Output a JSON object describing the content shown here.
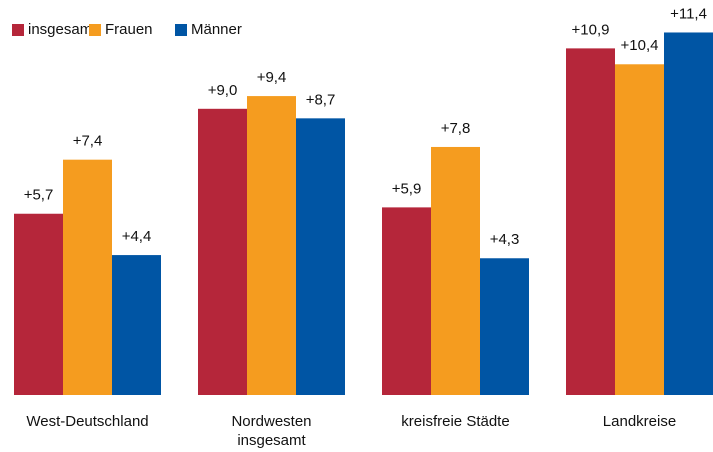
{
  "chart_data": {
    "type": "bar",
    "categories": [
      "West-Deutschland",
      "Nordwesten insgesamt",
      "kreisfreie Städte",
      "Landkreise"
    ],
    "series": [
      {
        "name": "insgesamt",
        "color": "#b5263a",
        "values": [
          5.7,
          9.0,
          5.9,
          10.9
        ],
        "value_labels": [
          "+5,7",
          "+9,0",
          "+5,9",
          "+10,9"
        ]
      },
      {
        "name": "Frauen",
        "color": "#f59c1f",
        "values": [
          7.4,
          9.4,
          7.8,
          10.4
        ],
        "value_labels": [
          "+7,4",
          "+9,4",
          "+7,8",
          "+10,4"
        ]
      },
      {
        "name": "Männer",
        "color": "#0055a4",
        "values": [
          4.4,
          8.7,
          4.3,
          11.4
        ],
        "value_labels": [
          "+4,4",
          "+8,7",
          "+4,3",
          "+11,4"
        ]
      }
    ],
    "legend": "top-left"
  }
}
